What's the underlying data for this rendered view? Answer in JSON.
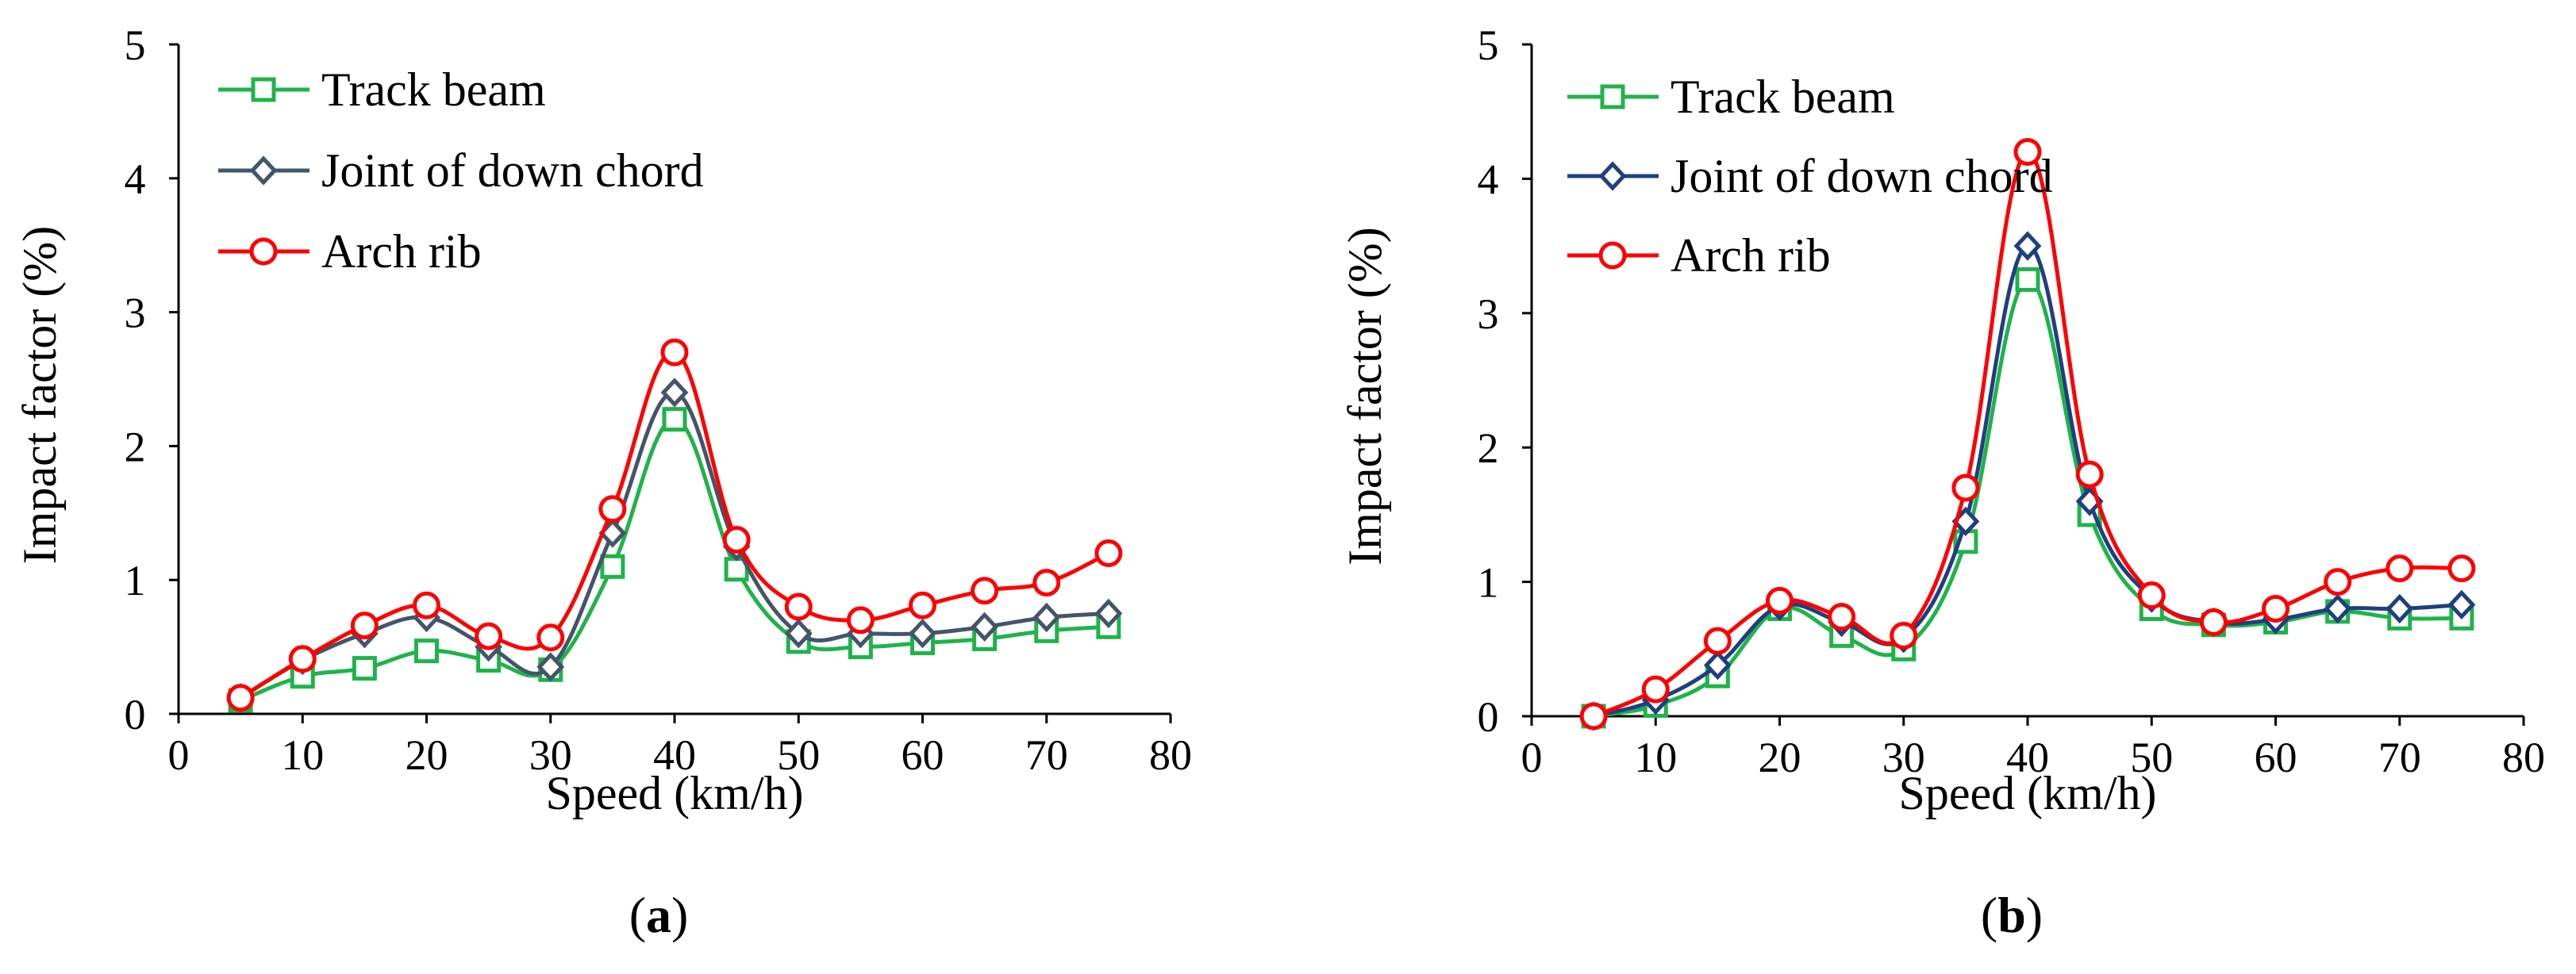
{
  "chart_data": [
    {
      "type": "line",
      "panel": "a",
      "caption": "(a)",
      "caption_parts": [
        "(",
        "a",
        ")"
      ],
      "xlabel": "Speed (km/h)",
      "ylabel": "Impact factor (%)",
      "xlim": [
        0,
        80
      ],
      "ylim": [
        0,
        5
      ],
      "xticks": [
        0,
        10,
        20,
        30,
        40,
        50,
        60,
        70,
        80
      ],
      "yticks": [
        0,
        1,
        2,
        3,
        4,
        5
      ],
      "grid": false,
      "legend_position": "top-left",
      "x": [
        5,
        10,
        15,
        20,
        25,
        30,
        35,
        40,
        45,
        50,
        55,
        60,
        65,
        70,
        75
      ],
      "series": [
        {
          "name": "Track beam",
          "color": "#1fb34a",
          "marker": "square",
          "values": [
            0.1,
            0.28,
            0.34,
            0.47,
            0.4,
            0.33,
            1.1,
            2.2,
            1.08,
            0.54,
            0.5,
            0.53,
            0.56,
            0.62,
            0.65
          ]
        },
        {
          "name": "Joint of down chord",
          "color": "#44546a",
          "marker": "diamond",
          "values": [
            0.12,
            0.4,
            0.6,
            0.72,
            0.5,
            0.35,
            1.35,
            2.4,
            1.25,
            0.6,
            0.6,
            0.6,
            0.65,
            0.72,
            0.75
          ]
        },
        {
          "name": "Arch rib",
          "color": "#ff0000",
          "marker": "circle",
          "values": [
            0.12,
            0.41,
            0.66,
            0.81,
            0.58,
            0.57,
            1.53,
            2.7,
            1.3,
            0.8,
            0.7,
            0.81,
            0.92,
            0.98,
            1.2
          ]
        }
      ]
    },
    {
      "type": "line",
      "panel": "b",
      "caption": "(b)",
      "caption_parts": [
        "(",
        "b",
        ")"
      ],
      "xlabel": "Speed (km/h)",
      "ylabel": "Impact factor (%)",
      "xlim": [
        0,
        80
      ],
      "ylim": [
        0,
        5
      ],
      "xticks": [
        0,
        10,
        20,
        30,
        40,
        50,
        60,
        70,
        80
      ],
      "yticks": [
        0,
        1,
        2,
        3,
        4,
        5
      ],
      "grid": false,
      "legend_position": "top-left",
      "x": [
        5,
        10,
        15,
        20,
        25,
        30,
        35,
        40,
        45,
        50,
        55,
        60,
        65,
        70,
        75
      ],
      "series": [
        {
          "name": "Track beam",
          "color": "#1fb34a",
          "marker": "square",
          "values": [
            0.0,
            0.08,
            0.3,
            0.8,
            0.6,
            0.5,
            1.3,
            3.25,
            1.5,
            0.8,
            0.68,
            0.7,
            0.78,
            0.73,
            0.73
          ]
        },
        {
          "name": "Joint of down chord",
          "color": "#1f3f7f",
          "marker": "diamond",
          "values": [
            0.0,
            0.12,
            0.38,
            0.82,
            0.7,
            0.58,
            1.45,
            3.5,
            1.6,
            0.88,
            0.7,
            0.72,
            0.8,
            0.8,
            0.83
          ]
        },
        {
          "name": "Arch rib",
          "color": "#ff0000",
          "marker": "circle",
          "values": [
            0.0,
            0.2,
            0.56,
            0.86,
            0.74,
            0.6,
            1.7,
            4.2,
            1.8,
            0.9,
            0.7,
            0.8,
            1.0,
            1.1,
            1.1
          ]
        }
      ]
    }
  ]
}
